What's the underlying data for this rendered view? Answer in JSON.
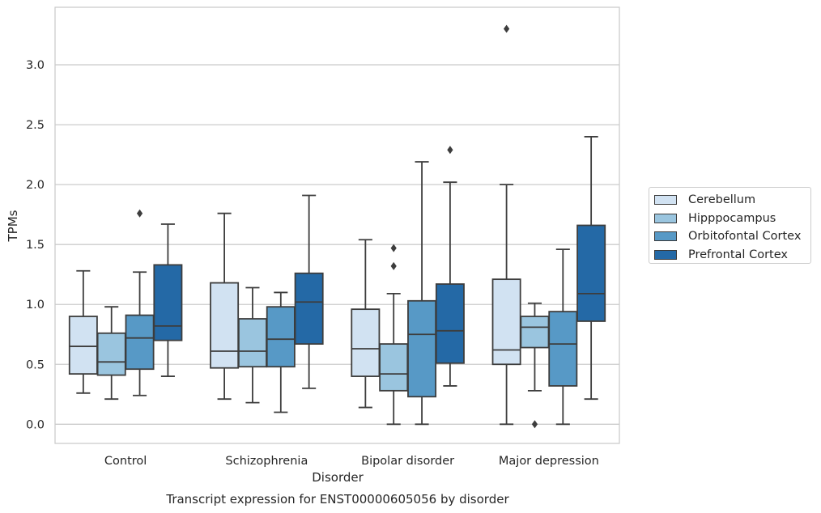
{
  "chart_data": {
    "type": "box",
    "title": "",
    "caption": "Transcript expression for ENST00000605056 by disorder",
    "xlabel": "Disorder",
    "ylabel": "TPMs",
    "ylim": [
      -0.16,
      3.48
    ],
    "yticks": [
      "0.0",
      "0.5",
      "1.0",
      "1.5",
      "2.0",
      "2.5",
      "3.0"
    ],
    "grid": "horizontal",
    "legend_position": "right",
    "categories": [
      "Control",
      "Schizophrenia",
      "Bipolar disorder",
      "Major depression"
    ],
    "series": [
      {
        "name": "Cerebellum",
        "color": "#d1e2f2",
        "boxes": [
          {
            "min": 0.26,
            "q1": 0.42,
            "median": 0.65,
            "q3": 0.9,
            "max": 1.28,
            "outliers": []
          },
          {
            "min": 0.21,
            "q1": 0.47,
            "median": 0.61,
            "q3": 1.18,
            "max": 1.76,
            "outliers": []
          },
          {
            "min": 0.14,
            "q1": 0.4,
            "median": 0.63,
            "q3": 0.96,
            "max": 1.54,
            "outliers": []
          },
          {
            "min": 0.0,
            "q1": 0.5,
            "median": 0.62,
            "q3": 1.21,
            "max": 2.0,
            "outliers": [
              3.3
            ]
          }
        ]
      },
      {
        "name": "Hipppocampus",
        "color": "#9ac5df",
        "boxes": [
          {
            "min": 0.21,
            "q1": 0.41,
            "median": 0.52,
            "q3": 0.76,
            "max": 0.98,
            "outliers": []
          },
          {
            "min": 0.18,
            "q1": 0.48,
            "median": 0.61,
            "q3": 0.88,
            "max": 1.14,
            "outliers": []
          },
          {
            "min": 0.0,
            "q1": 0.28,
            "median": 0.42,
            "q3": 0.67,
            "max": 1.09,
            "outliers": [
              1.47,
              1.32
            ]
          },
          {
            "min": 0.28,
            "q1": 0.64,
            "median": 0.81,
            "q3": 0.9,
            "max": 1.01,
            "outliers": [
              0.0
            ]
          }
        ]
      },
      {
        "name": "Orbitofontal Cortex",
        "color": "#5799c6",
        "boxes": [
          {
            "min": 0.24,
            "q1": 0.46,
            "median": 0.72,
            "q3": 0.91,
            "max": 1.27,
            "outliers": [
              1.76
            ]
          },
          {
            "min": 0.1,
            "q1": 0.48,
            "median": 0.71,
            "q3": 0.98,
            "max": 1.1,
            "outliers": []
          },
          {
            "min": 0.0,
            "q1": 0.23,
            "median": 0.75,
            "q3": 1.03,
            "max": 2.19,
            "outliers": []
          },
          {
            "min": 0.0,
            "q1": 0.32,
            "median": 0.67,
            "q3": 0.94,
            "max": 1.46,
            "outliers": []
          }
        ]
      },
      {
        "name": "Prefrontal Cortex",
        "color": "#2469a6",
        "boxes": [
          {
            "min": 0.4,
            "q1": 0.7,
            "median": 0.82,
            "q3": 1.33,
            "max": 1.67,
            "outliers": []
          },
          {
            "min": 0.3,
            "q1": 0.67,
            "median": 1.02,
            "q3": 1.26,
            "max": 1.91,
            "outliers": []
          },
          {
            "min": 0.32,
            "q1": 0.51,
            "median": 0.78,
            "q3": 1.17,
            "max": 2.02,
            "outliers": [
              2.29
            ]
          },
          {
            "min": 0.21,
            "q1": 0.86,
            "median": 1.09,
            "q3": 1.66,
            "max": 2.4,
            "outliers": []
          }
        ]
      }
    ]
  }
}
